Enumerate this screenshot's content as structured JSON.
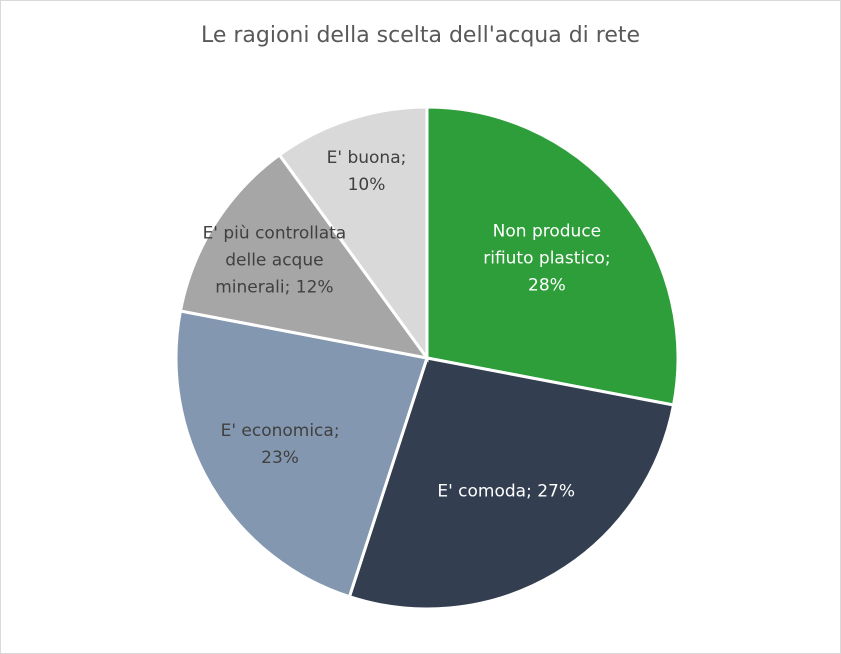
{
  "chart_data": {
    "type": "pie",
    "title": "Le ragioni della scelta dell'acqua di rete",
    "categories": [
      "Non produce rifiuto plastico;",
      "E' comoda;",
      "E' economica;",
      "E' più controllata delle acque minerali;",
      "E' buona;"
    ],
    "values": [
      28,
      27,
      23,
      12,
      10
    ],
    "value_labels": [
      "28%",
      "27%",
      "23%",
      "12%",
      "10%"
    ],
    "colors": [
      "#2e9e3a",
      "#333f50",
      "#8497b0",
      "#a6a6a6",
      "#d9d9d9"
    ],
    "label_colors": [
      "#ffffff",
      "#ffffff",
      "#404040",
      "#404040",
      "#404040"
    ]
  }
}
